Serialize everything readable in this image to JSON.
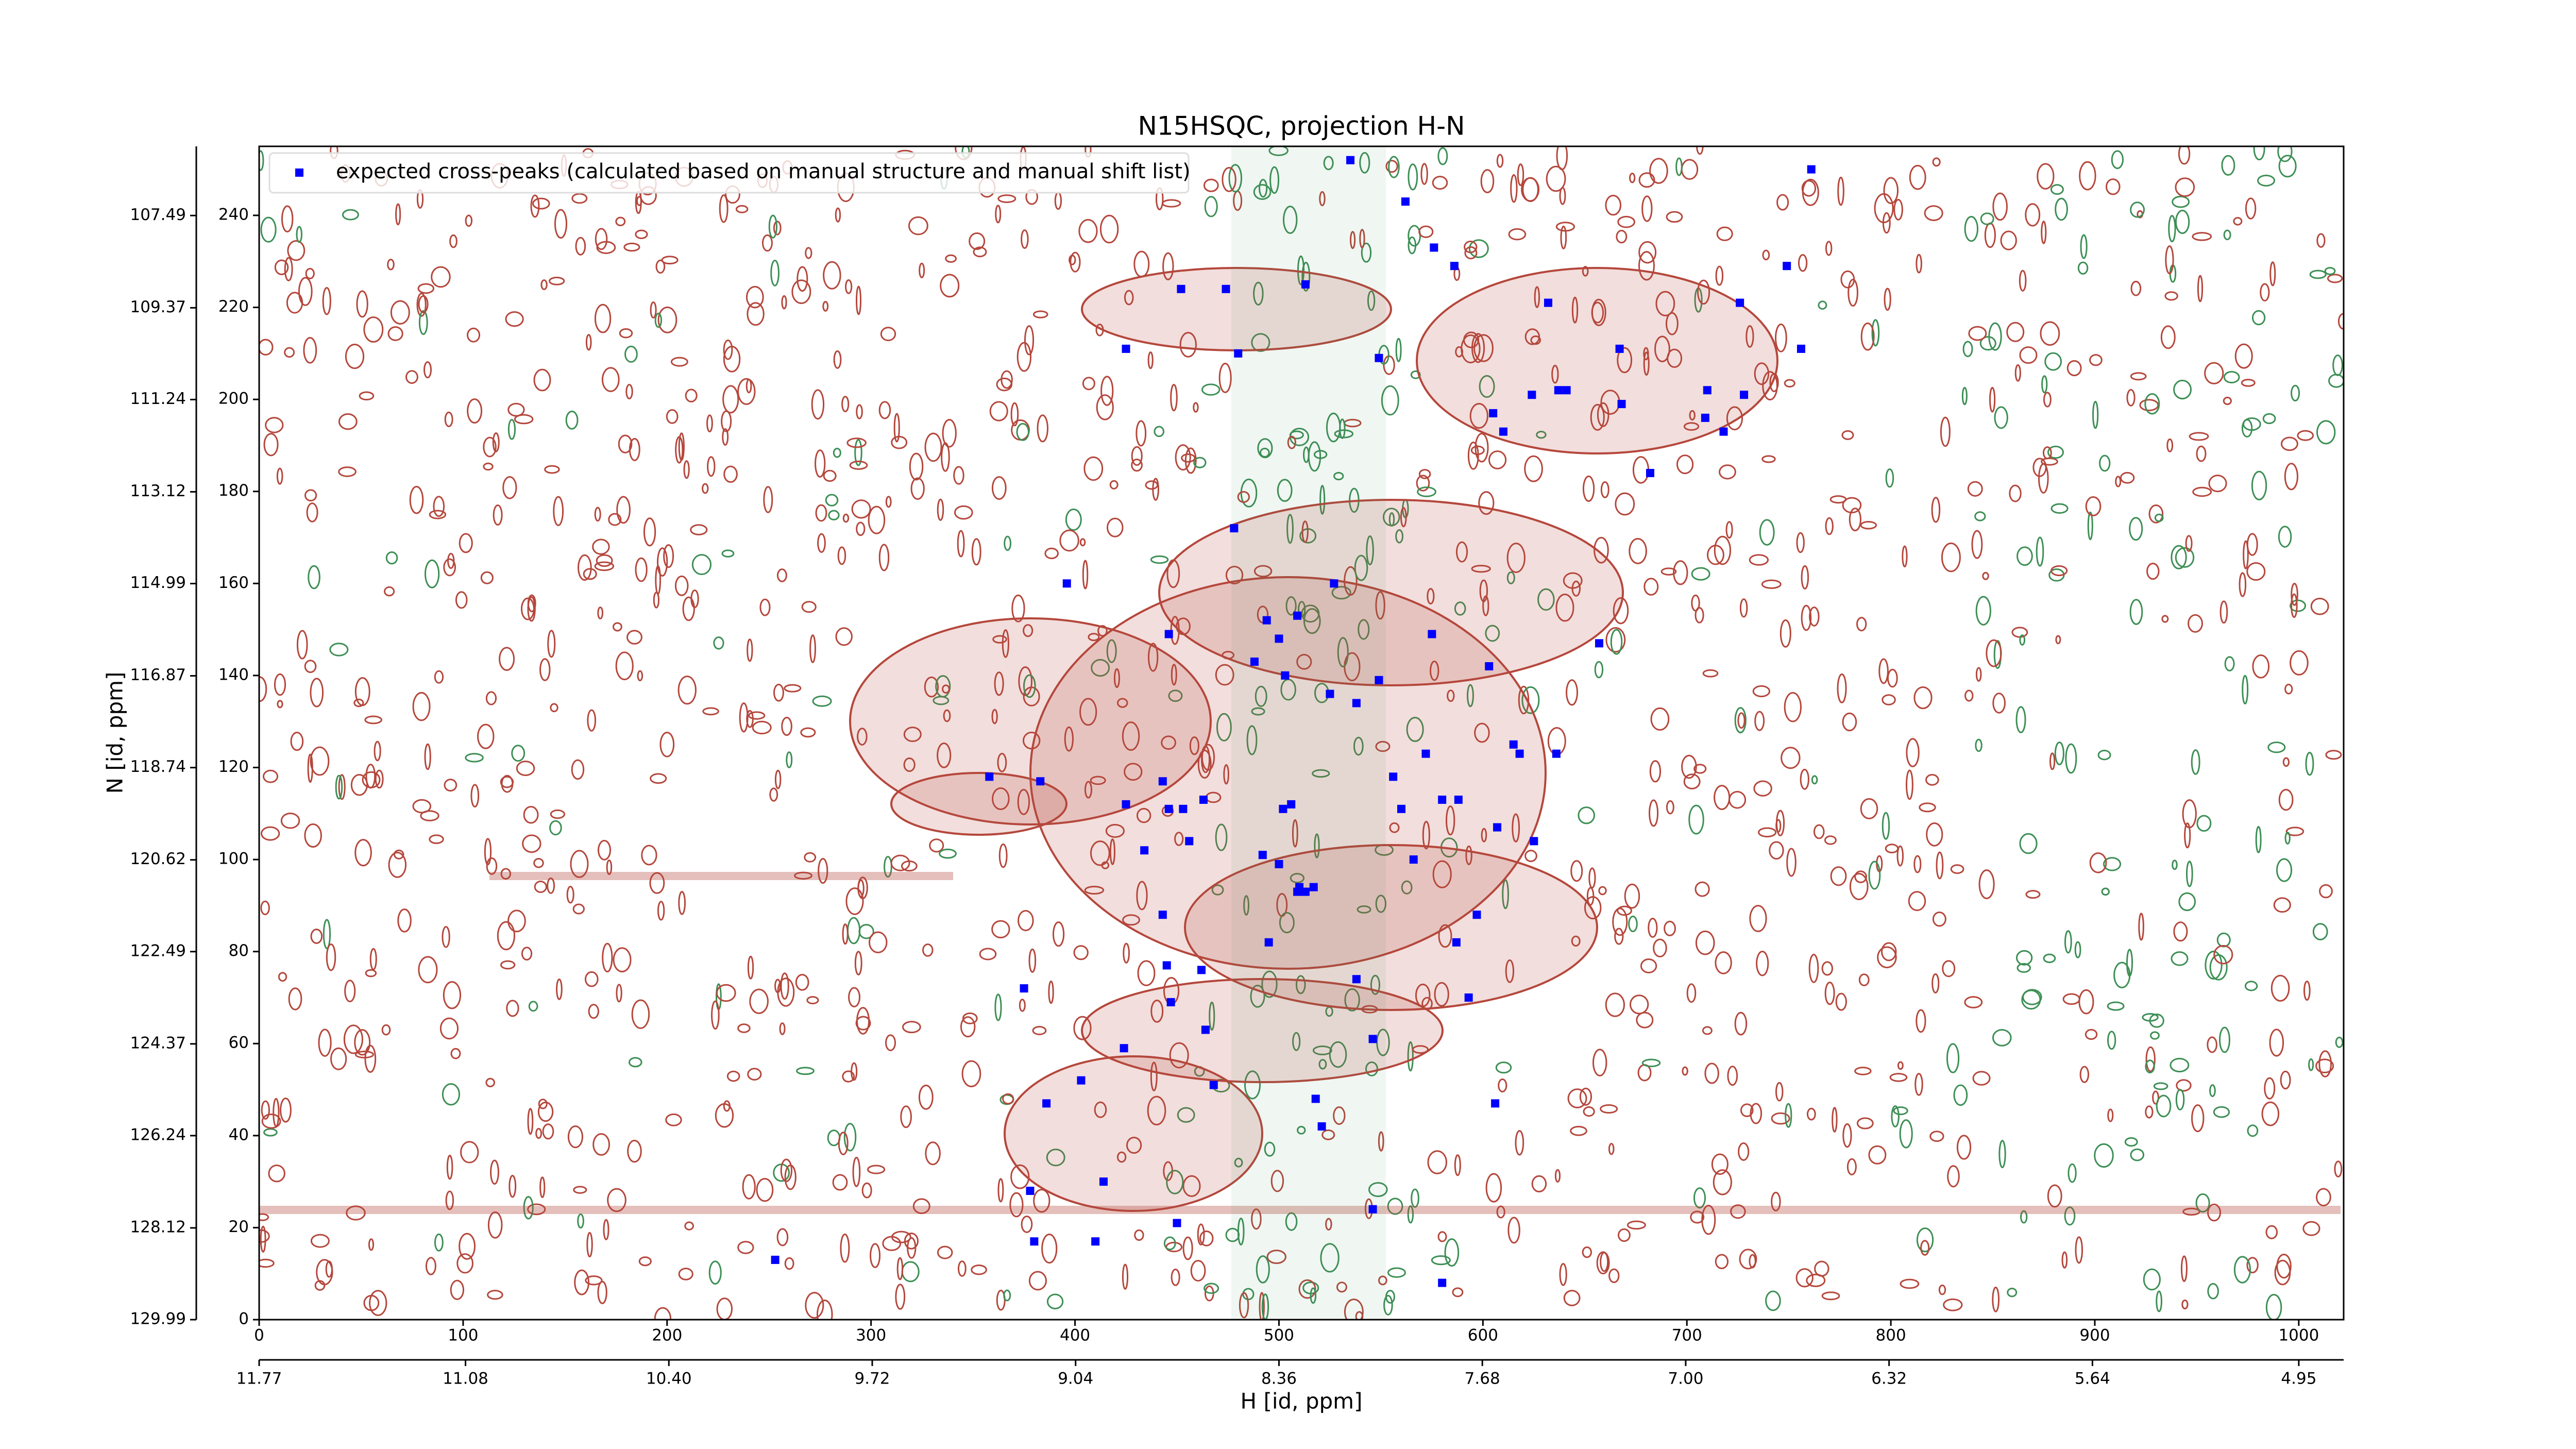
{
  "chart_data": {
    "type": "scatter",
    "title": "N15HSQC, projection H-N",
    "xlabel": "H [id, ppm]",
    "ylabel": "N [id, ppm]",
    "xlim": [
      0,
      1022
    ],
    "ylim": [
      0,
      255
    ],
    "xticks": [
      0,
      100,
      200,
      300,
      400,
      500,
      600,
      700,
      800,
      900,
      1000
    ],
    "yticks": [
      0,
      20,
      40,
      60,
      80,
      100,
      120,
      140,
      160,
      180,
      200,
      220,
      240
    ],
    "x2lim": [
      11.77,
      4.8
    ],
    "x2ticks": [
      11.77,
      11.08,
      {
        "value": 10.4,
        "label": "10.40"
      },
      9.72,
      9.04,
      8.36,
      7.68,
      {
        "value": 7.0,
        "label": "7.00"
      },
      6.32,
      5.64,
      4.95
    ],
    "y2lim": [
      129.99,
      106.08
    ],
    "y2ticks": [
      129.99,
      128.12,
      126.24,
      124.37,
      122.49,
      120.62,
      118.74,
      116.87,
      114.99,
      113.12,
      111.24,
      109.37,
      107.49
    ],
    "legend": "upper left",
    "series": [
      {
        "name": "expected cross-peaks (calculated based on manual structure and manual shift list)",
        "color": "#0000ff",
        "x": [
          535,
          761,
          562,
          576,
          586,
          452,
          474,
          513,
          749,
          632,
          726,
          425,
          480,
          549,
          667,
          756,
          624,
          637,
          641,
          710,
          728,
          668,
          605,
          709,
          610,
          718,
          682,
          478,
          396,
          527,
          494,
          509,
          446,
          575,
          500,
          657,
          488,
          503,
          603,
          549,
          525,
          538,
          615,
          572,
          618,
          636,
          358,
          383,
          443,
          556,
          463,
          425,
          446,
          453,
          506,
          502,
          560,
          580,
          588,
          607,
          456,
          625,
          434,
          492,
          500,
          566,
          510,
          509,
          513,
          517,
          443,
          597,
          495,
          587,
          445,
          462,
          538,
          375,
          593,
          447,
          464,
          424,
          546,
          468,
          403,
          386,
          518,
          606,
          521,
          378,
          414,
          546,
          450,
          380,
          410,
          253,
          580
        ],
        "y": [
          252,
          250,
          243,
          233,
          229,
          224,
          224,
          225,
          229,
          221,
          221,
          211,
          210,
          209,
          211,
          211,
          201,
          202,
          202,
          202,
          201,
          199,
          197,
          196,
          193,
          193,
          184,
          172,
          160,
          160,
          152,
          153,
          149,
          149,
          148,
          147,
          143,
          140,
          142,
          139,
          136,
          134,
          125,
          123,
          123,
          123,
          118,
          117,
          117,
          118,
          113,
          112,
          111,
          111,
          112,
          111,
          111,
          113,
          113,
          107,
          104,
          104,
          102,
          101,
          99,
          100,
          94,
          93,
          93,
          94,
          88,
          88,
          82,
          82,
          77,
          76,
          74,
          72,
          70,
          69,
          63,
          59,
          61,
          51,
          52,
          47,
          48,
          47,
          42,
          28,
          30,
          24,
          21,
          17,
          17,
          13,
          8
        ]
      }
    ]
  }
}
